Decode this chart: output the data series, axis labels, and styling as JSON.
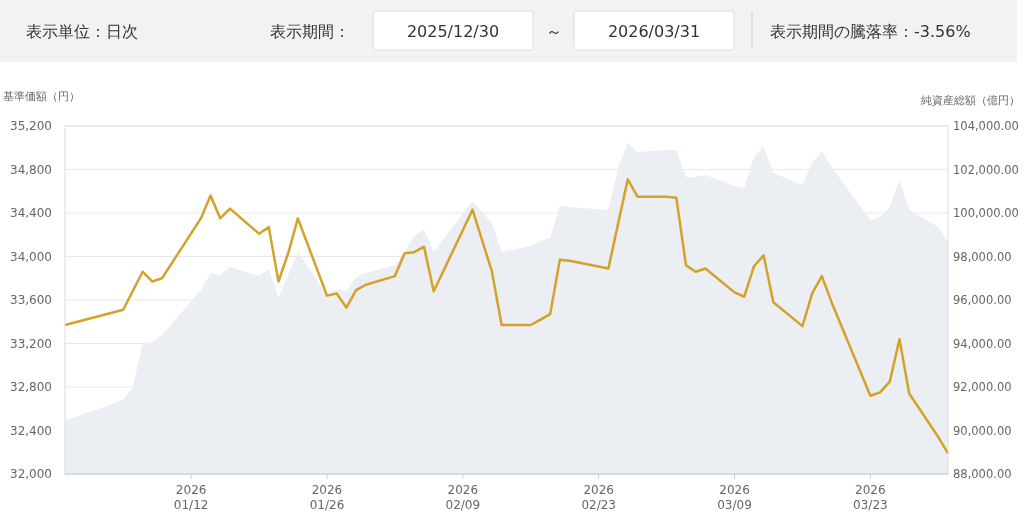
{
  "chart_data": {
    "type": "line",
    "ylabel": "基準価額（円）",
    "y2label": "純資産総額（億円）",
    "annotations": [
      "表示単位：日次",
      "表示期間：",
      "2025/12/30",
      "～",
      "2026/03/31",
      "表示期間の騰落率：-3.56%"
    ],
    "xlim": [
      "2025-12-30",
      "2026-03-31"
    ],
    "xticks": [
      {
        "value": "2026-01-12",
        "label": "2026\n01/12"
      },
      {
        "value": "2026-01-26",
        "label": "2026\n01/26"
      },
      {
        "value": "2026-02-09",
        "label": "2026\n02/09"
      },
      {
        "value": "2026-02-23",
        "label": "2026\n02/23"
      },
      {
        "value": "2026-03-09",
        "label": "2026\n03/09"
      },
      {
        "value": "2026-03-23",
        "label": "2026\n03/23"
      }
    ],
    "ylim": [
      32000,
      35200
    ],
    "yticks": [
      {
        "value": 32000,
        "label": "32,000"
      },
      {
        "value": 32400,
        "label": "32,400"
      },
      {
        "value": 32800,
        "label": "32,800"
      },
      {
        "value": 33200,
        "label": "33,200"
      },
      {
        "value": 33600,
        "label": "33,600"
      },
      {
        "value": 34000,
        "label": "34,000"
      },
      {
        "value": 34400,
        "label": "34,400"
      },
      {
        "value": 34800,
        "label": "34,800"
      },
      {
        "value": 35200,
        "label": "35,200"
      }
    ],
    "y2lim": [
      88000,
      104000
    ],
    "y2ticks": [
      {
        "value": 88000,
        "label": "88,000.00"
      },
      {
        "value": 90000,
        "label": "90,000.00"
      },
      {
        "value": 92000,
        "label": "92,000.00"
      },
      {
        "value": 94000,
        "label": "94,000.00"
      },
      {
        "value": 96000,
        "label": "96,000.00"
      },
      {
        "value": 98000,
        "label": "98,000.00"
      },
      {
        "value": 100000,
        "label": "100,000.00"
      },
      {
        "value": 102000,
        "label": "102,000.00"
      },
      {
        "value": 104000,
        "label": "104,000.00"
      }
    ],
    "grid": "y",
    "series": [
      {
        "type": "area",
        "axis": "y2",
        "color": "#ebeef3",
        "x": [
          "2025-12-30",
          "2026-01-05",
          "2026-01-06",
          "2026-01-07",
          "2026-01-08",
          "2026-01-09",
          "2026-01-13",
          "2026-01-14",
          "2026-01-15",
          "2026-01-16",
          "2026-01-19",
          "2026-01-20",
          "2026-01-21",
          "2026-01-22",
          "2026-01-23",
          "2026-01-26",
          "2026-01-27",
          "2026-01-28",
          "2026-01-29",
          "2026-01-30",
          "2026-02-02",
          "2026-02-03",
          "2026-02-04",
          "2026-02-05",
          "2026-02-06",
          "2026-02-10",
          "2026-02-12",
          "2026-02-13",
          "2026-02-16",
          "2026-02-17",
          "2026-02-18",
          "2026-02-19",
          "2026-02-20",
          "2026-02-24",
          "2026-02-25",
          "2026-02-26",
          "2026-02-27",
          "2026-03-02",
          "2026-03-03",
          "2026-03-04",
          "2026-03-05",
          "2026-03-06",
          "2026-03-09",
          "2026-03-10",
          "2026-03-11",
          "2026-03-12",
          "2026-03-13",
          "2026-03-16",
          "2026-03-17",
          "2026-03-18",
          "2026-03-19",
          "2026-03-23",
          "2026-03-24",
          "2026-03-25",
          "2026-03-26",
          "2026-03-27",
          "2026-03-30",
          "2026-03-31"
        ],
        "values": [
          90450,
          91400,
          92000,
          94000,
          94070,
          94390,
          96460,
          97240,
          97150,
          97520,
          97100,
          97420,
          96090,
          97150,
          98210,
          96230,
          96500,
          96410,
          97060,
          97240,
          97610,
          98210,
          98940,
          99260,
          98210,
          100550,
          99540,
          98210,
          98480,
          98710,
          98850,
          100320,
          100280,
          100140,
          102070,
          103220,
          102800,
          102900,
          102900,
          101660,
          101660,
          101750,
          101240,
          101150,
          102570,
          103030,
          101840,
          101290,
          102300,
          102850,
          102110,
          99680,
          99820,
          100280,
          101520,
          100140,
          99360,
          98620
        ]
      },
      {
        "type": "line",
        "axis": "y",
        "color": "#d4a22a",
        "x": [
          "2025-12-30",
          "2026-01-05",
          "2026-01-07",
          "2026-01-08",
          "2026-01-09",
          "2026-01-13",
          "2026-01-14",
          "2026-01-15",
          "2026-01-16",
          "2026-01-19",
          "2026-01-20",
          "2026-01-21",
          "2026-01-22",
          "2026-01-23",
          "2026-01-26",
          "2026-01-27",
          "2026-01-28",
          "2026-01-29",
          "2026-01-30",
          "2026-02-02",
          "2026-02-03",
          "2026-02-04",
          "2026-02-05",
          "2026-02-06",
          "2026-02-10",
          "2026-02-12",
          "2026-02-13",
          "2026-02-16",
          "2026-02-17",
          "2026-02-18",
          "2026-02-19",
          "2026-02-20",
          "2026-02-24",
          "2026-02-26",
          "2026-02-27",
          "2026-03-02",
          "2026-03-03",
          "2026-03-04",
          "2026-03-05",
          "2026-03-06",
          "2026-03-09",
          "2026-03-10",
          "2026-03-11",
          "2026-03-12",
          "2026-03-13",
          "2026-03-16",
          "2026-03-17",
          "2026-03-18",
          "2026-03-19",
          "2026-03-23",
          "2026-03-24",
          "2026-03-25",
          "2026-03-26",
          "2026-03-27",
          "2026-03-30",
          "2026-03-31"
        ],
        "values": [
          33370,
          33510,
          33860,
          33770,
          33800,
          34350,
          34560,
          34350,
          34440,
          34210,
          34270,
          33770,
          34030,
          34350,
          33640,
          33660,
          33530,
          33690,
          33740,
          33820,
          34030,
          34040,
          34090,
          33680,
          34430,
          33860,
          33370,
          33370,
          33420,
          33470,
          33970,
          33960,
          33890,
          34710,
          34550,
          34550,
          34540,
          33920,
          33860,
          33890,
          33670,
          33630,
          33910,
          34010,
          33580,
          33360,
          33660,
          33820,
          33580,
          32720,
          32750,
          32850,
          33240,
          32740,
          32340,
          32190
        ]
      }
    ]
  }
}
